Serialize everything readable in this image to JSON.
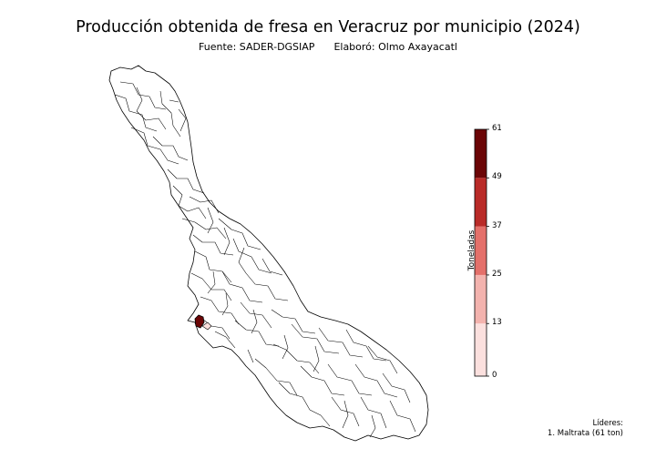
{
  "title": "Producción obtenida de fresa en Veracruz por municipio (2024)",
  "subtitle": {
    "source": "Fuente: SADER-DGSIAP",
    "author": "Elaboró: Olmo Axayacatl"
  },
  "colorbar": {
    "label": "Toneladas",
    "ticks": [
      "0",
      "13",
      "25",
      "37",
      "49",
      "61"
    ],
    "bins": [
      {
        "from": 0,
        "to": 13,
        "color": "#fbe0de"
      },
      {
        "from": 13,
        "to": 25,
        "color": "#f3b3ae"
      },
      {
        "from": 25,
        "to": 37,
        "color": "#e4706a"
      },
      {
        "from": 37,
        "to": 49,
        "color": "#b92b28"
      },
      {
        "from": 49,
        "to": 61,
        "color": "#6b0506"
      }
    ]
  },
  "leaders": {
    "heading": "Líderes:",
    "items": [
      "1. Maltrata (61 ton)"
    ]
  },
  "map": {
    "highlight_municipality": "Maltrata",
    "highlight_value": 61,
    "highlight_color": "#6b0506",
    "default_fill": "#ffffff",
    "outline_color": "#000000"
  }
}
